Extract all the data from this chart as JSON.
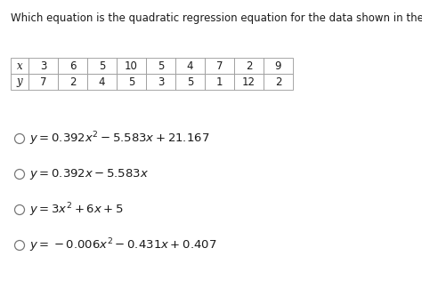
{
  "title": "Which equation is the quadratic regression equation for the data shown in the table?",
  "table_x_header": "x",
  "table_y_header": "y",
  "table_x_values": [
    3,
    6,
    5,
    10,
    5,
    4,
    7,
    2,
    9
  ],
  "table_y_values": [
    7,
    2,
    4,
    5,
    3,
    5,
    1,
    12,
    2
  ],
  "bg_color": "#ffffff",
  "text_color": "#1a1a1a",
  "table_border_color": "#999999",
  "title_fontsize": 8.5,
  "option_fontsize": 9.5,
  "table_fontsize": 8.5,
  "fig_width": 4.74,
  "fig_height": 3.24,
  "dpi": 100
}
